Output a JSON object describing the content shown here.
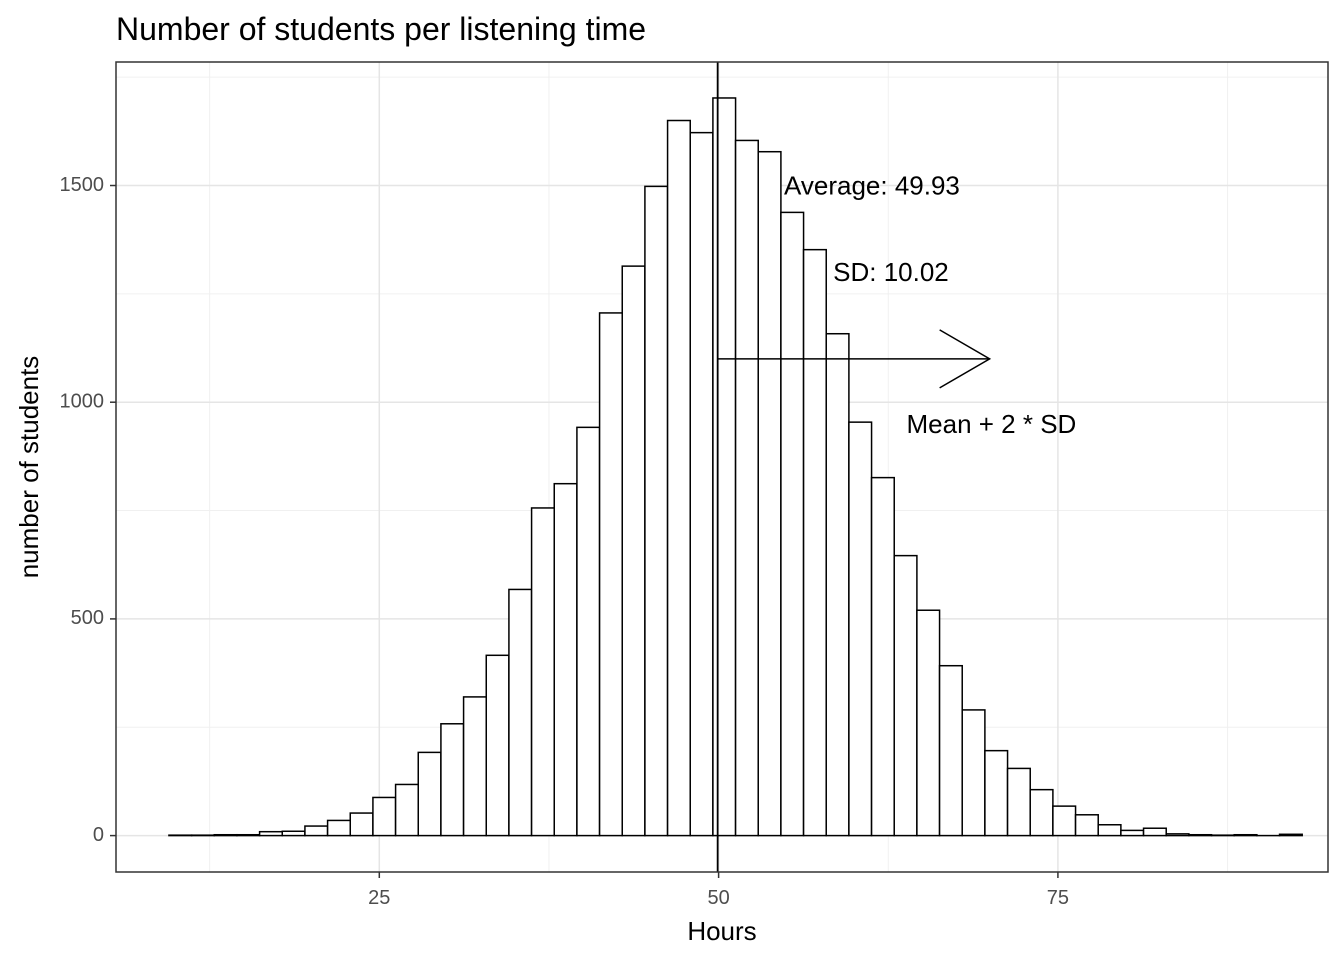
{
  "chart_data": {
    "type": "bar",
    "title": "Number of students per listening time",
    "xlabel": "Hours",
    "ylabel": "number of students",
    "xlim": [
      5.6,
      94.9
    ],
    "ylim": [
      -84,
      1785
    ],
    "x_ticks": [
      25,
      50,
      75
    ],
    "y_ticks": [
      0,
      500,
      1000,
      1500
    ],
    "grid": true,
    "bin_width": 1.67,
    "bin_starts": [
      9.5,
      11.17,
      12.84,
      14.51,
      16.18,
      17.85,
      19.52,
      21.19,
      22.86,
      24.53,
      26.2,
      27.87,
      29.54,
      31.21,
      32.88,
      34.55,
      36.22,
      37.89,
      39.56,
      41.23,
      42.9,
      44.57,
      46.24,
      47.91,
      49.58,
      51.25,
      52.92,
      54.59,
      56.26,
      57.93,
      59.6,
      61.27,
      62.94,
      64.61,
      66.28,
      67.95,
      69.62,
      71.29,
      72.96,
      74.63,
      76.3,
      77.97,
      79.64,
      81.31,
      82.98,
      84.65,
      86.32,
      87.99,
      89.66,
      91.33
    ],
    "values": [
      1,
      1,
      2,
      2,
      9,
      10,
      22,
      35,
      52,
      88,
      118,
      192,
      258,
      320,
      416,
      568,
      756,
      812,
      942,
      1206,
      1314,
      1498,
      1650,
      1622,
      1702,
      1604,
      1578,
      1438,
      1352,
      1158,
      954,
      826,
      646,
      520,
      392,
      290,
      196,
      155,
      106,
      68,
      48,
      25,
      12,
      17,
      4,
      2,
      1,
      2,
      0,
      3
    ],
    "mean": 49.93,
    "sd": 10.02,
    "annotations": [
      {
        "text": "Average: 49.93",
        "x": 61.3,
        "y": 1495
      },
      {
        "text": "SD: 10.02",
        "x": 62.7,
        "y": 1295
      },
      {
        "text": "Mean + 2 * SD",
        "x": 70.1,
        "y": 945
      }
    ],
    "arrow": {
      "x_start": 49.93,
      "x_end": 69.97,
      "y": 1100
    }
  }
}
